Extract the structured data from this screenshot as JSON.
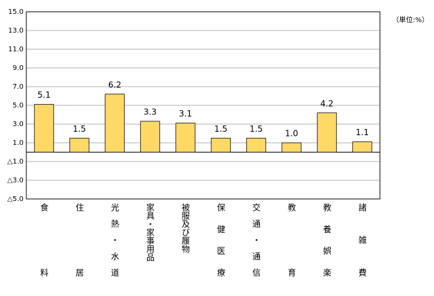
{
  "chart_data": {
    "type": "bar",
    "annotation": "（単位:%）",
    "categories": [
      "食料",
      "住居",
      "光熱・水道",
      "家具・家事用品",
      "被服及び履物",
      "保健医療",
      "交通・通信",
      "教育",
      "教養娯楽",
      "諸雑費"
    ],
    "values": [
      5.1,
      1.5,
      6.2,
      3.3,
      3.1,
      1.5,
      1.5,
      1.0,
      4.2,
      1.1
    ],
    "value_labels": [
      "5.1",
      "1.5",
      "6.2",
      "3.3",
      "3.1",
      "1.5",
      "1.5",
      "1.0",
      "4.2",
      "1.1"
    ],
    "color": "#ffd966",
    "ylim": [
      -5,
      15
    ],
    "yticks": [
      {
        "value": 15,
        "label": "15.0"
      },
      {
        "value": 13,
        "label": "13.0"
      },
      {
        "value": 11,
        "label": "11.0"
      },
      {
        "value": 9,
        "label": "9.0"
      },
      {
        "value": 7,
        "label": "7.0"
      },
      {
        "value": 5,
        "label": "5.0"
      },
      {
        "value": 3,
        "label": "3.0"
      },
      {
        "value": 1,
        "label": "1.0"
      },
      {
        "value": -1,
        "label": "△1.0"
      },
      {
        "value": -3,
        "label": "△3.0"
      },
      {
        "value": -5,
        "label": "△5.0"
      }
    ],
    "grid": true
  }
}
